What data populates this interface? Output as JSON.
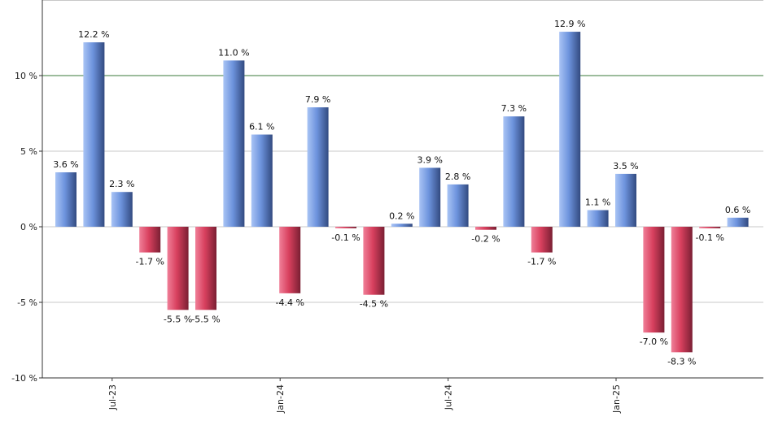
{
  "chart_data": {
    "type": "bar",
    "title": "",
    "xlabel": "",
    "ylabel": "",
    "ylim": [
      -10,
      15
    ],
    "y_ticks": [
      -10,
      -5,
      0,
      5,
      10
    ],
    "y_tick_labels": [
      "-10 %",
      "-5 %",
      "0 %",
      "5 %",
      "10 %"
    ],
    "reference_line": 10,
    "grid": true,
    "x_tick_labels": [
      {
        "index": 2,
        "label": "Jul-23"
      },
      {
        "index": 8,
        "label": "Jan-24"
      },
      {
        "index": 14,
        "label": "Jul-24"
      },
      {
        "index": 20,
        "label": "Jan-25"
      }
    ],
    "values": [
      3.6,
      12.2,
      2.3,
      -1.7,
      -5.5,
      -5.5,
      11.0,
      6.1,
      -4.4,
      7.9,
      -0.1,
      -4.5,
      0.2,
      3.9,
      2.8,
      -0.2,
      7.3,
      -1.7,
      12.9,
      1.1,
      3.5,
      -7.0,
      -8.3,
      -0.1,
      0.6
    ],
    "data_labels": [
      "3.6 %",
      "12.2 %",
      "2.3 %",
      "-1.7 %",
      "-5.5 %",
      "-5.5 %",
      "11.0 %",
      "6.1 %",
      "-4.4 %",
      "7.9 %",
      "-0.1 %",
      "-4.5 %",
      "0.2 %",
      "3.9 %",
      "2.8 %",
      "-0.2 %",
      "7.3 %",
      "-1.7 %",
      "12.9 %",
      "1.1 %",
      "3.5 %",
      "-7.0 %",
      "-8.3 %",
      "-0.1 %",
      "0.6 %"
    ],
    "positive_color": "#6a8fd8",
    "negative_color": "#d8405e",
    "reference_line_color": "#3a7a3a"
  }
}
